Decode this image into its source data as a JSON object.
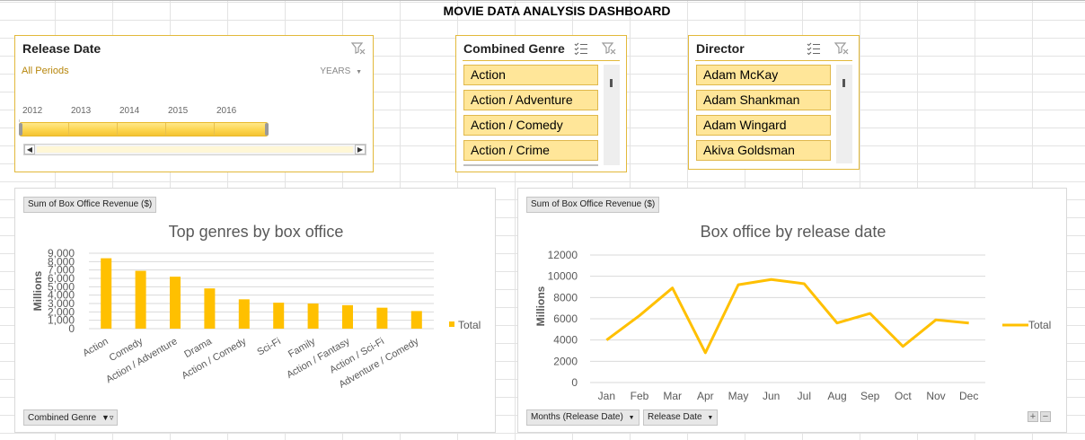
{
  "dashboard": {
    "title": "MOVIE DATA ANALYSIS DASHBOARD"
  },
  "timeline": {
    "header": "Release Date",
    "period_label": "All Periods",
    "level_label": "YEARS",
    "years": [
      "2012",
      "2013",
      "2014",
      "2015",
      "2016"
    ]
  },
  "genre_slicer": {
    "header": "Combined Genre",
    "items": [
      "Action",
      "Action / Adventure",
      "Action / Comedy",
      "Action / Crime"
    ]
  },
  "director_slicer": {
    "header": "Director",
    "items": [
      "Adam McKay",
      "Adam Shankman",
      "Adam Wingard",
      "Akiva Goldsman"
    ]
  },
  "chart_data": [
    {
      "type": "bar",
      "title": "Top genres by box office",
      "value_field_label": "Sum of Box Office Revenue ($)",
      "axis_field_label": "Combined Genre",
      "ylabel": "Millions",
      "categories": [
        "Action",
        "Comedy",
        "Action / Adventure",
        "Drama",
        "Action / Comedy",
        "Sci-Fi",
        "Family",
        "Action / Fantasy",
        "Action / Sci-Fi",
        "Adventure / Comedy"
      ],
      "series": [
        {
          "name": "Total",
          "values": [
            8400,
            6900,
            6200,
            4800,
            3500,
            3100,
            3000,
            2800,
            2500,
            2100
          ],
          "color": "#ffc000"
        }
      ],
      "ylim": [
        0,
        9000
      ],
      "yticks": [
        "0",
        "1,000",
        "2,000",
        "3,000",
        "4,000",
        "5,000",
        "6,000",
        "7,000",
        "8,000",
        "9,000"
      ],
      "grid": true,
      "legend": "right"
    },
    {
      "type": "line",
      "title": "Box office by release date",
      "value_field_label": "Sum of Box Office Revenue ($)",
      "axis_field_labels": [
        "Months (Release Date)",
        "Release Date"
      ],
      "ylabel": "Millions",
      "categories": [
        "Jan",
        "Feb",
        "Mar",
        "Apr",
        "May",
        "Jun",
        "Jul",
        "Aug",
        "Sep",
        "Oct",
        "Nov",
        "Dec"
      ],
      "series": [
        {
          "name": "Total",
          "values": [
            4000,
            6300,
            8900,
            2800,
            9200,
            9700,
            9300,
            5600,
            6500,
            3400,
            5900,
            5600
          ],
          "color": "#ffc000"
        }
      ],
      "ylim": [
        0,
        12000
      ],
      "yticks": [
        "0",
        "2000",
        "4000",
        "6000",
        "8000",
        "10000",
        "12000"
      ],
      "grid": true,
      "legend": "right",
      "buttons": {
        "plus": "+",
        "minus": "−"
      }
    }
  ]
}
